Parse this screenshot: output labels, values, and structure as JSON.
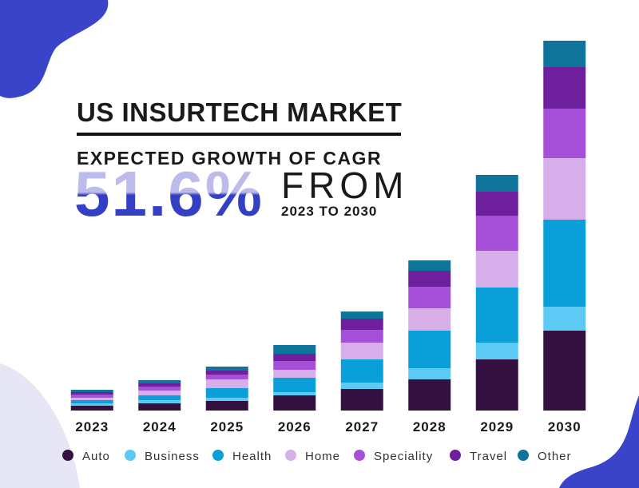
{
  "header": {
    "title": "US INSURTECH MARKET",
    "subtitle": "EXPECTED GROWTH OF CAGR",
    "rate": "51.6%",
    "from": "FROM",
    "period": "2023 TO 2030"
  },
  "chart_data": {
    "type": "bar",
    "stacked": true,
    "categories": [
      "2023",
      "2024",
      "2025",
      "2026",
      "2027",
      "2028",
      "2029",
      "2030"
    ],
    "series": [
      {
        "name": "Auto",
        "color": "#33103f",
        "values": [
          6,
          9,
          12,
          19,
          27,
          39,
          64,
          100
        ]
      },
      {
        "name": "Business",
        "color": "#5ccaf3",
        "values": [
          3,
          4,
          4,
          4,
          8,
          14,
          21,
          30
        ]
      },
      {
        "name": "Health",
        "color": "#0a9fd8",
        "values": [
          4,
          6,
          12,
          18,
          29,
          47,
          69,
          109
        ]
      },
      {
        "name": "Home",
        "color": "#d5aeea",
        "values": [
          3,
          6,
          11,
          10,
          21,
          28,
          46,
          77
        ]
      },
      {
        "name": "Speciality",
        "color": "#a64fd8",
        "values": [
          4,
          5,
          6,
          11,
          16,
          27,
          44,
          62
        ]
      },
      {
        "name": "Travel",
        "color": "#6d1f9c",
        "values": [
          3,
          4,
          5,
          9,
          14,
          20,
          30,
          52
        ]
      },
      {
        "name": "Other",
        "color": "#0e7499",
        "values": [
          3,
          4,
          5,
          11,
          9,
          13,
          21,
          33
        ]
      }
    ]
  }
}
